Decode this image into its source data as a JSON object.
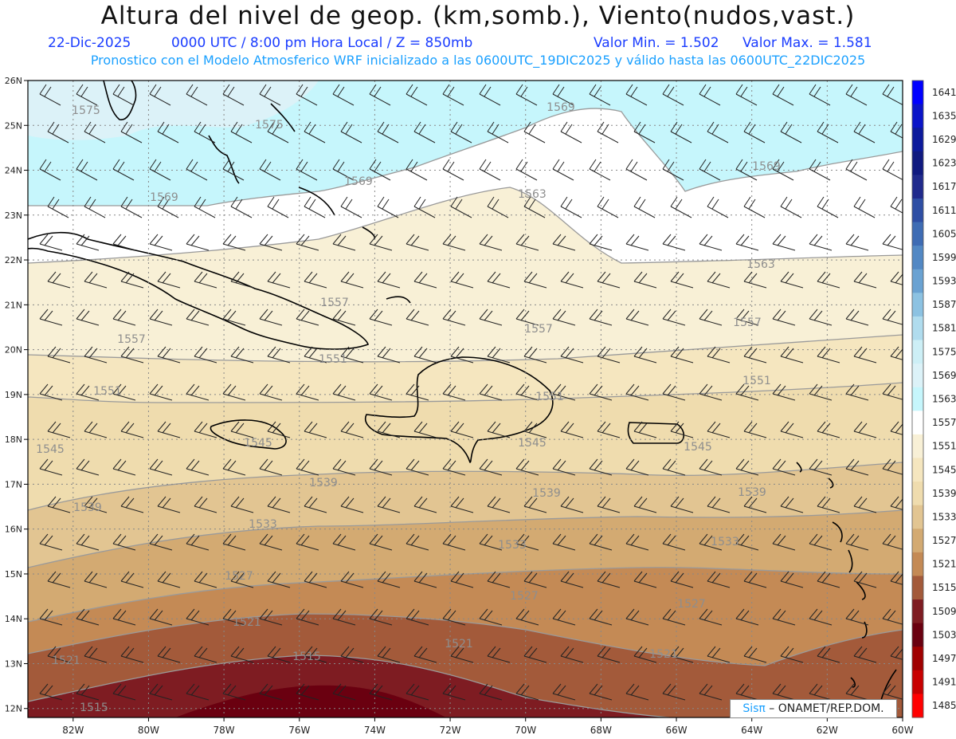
{
  "header": {
    "title": "Altura del nivel de geop. (km,somb.), Viento(nudos,vast.)",
    "date": "22-Dic-2025",
    "time": "0000 UTC / 8:00 pm Hora Local / Z = 850mb",
    "valmin": "Valor Min. = 1.502",
    "valmax": "Valor Max. = 1.581",
    "model_line": "Pronostico con el Modelo Atmosferico WRF inicializado a las 0600UTC_19DIC2025 y válido hasta las  0600UTC_22DIC2025"
  },
  "axes": {
    "lon_labels": [
      "82W",
      "80W",
      "78W",
      "76W",
      "74W",
      "72W",
      "70W",
      "68W",
      "66W",
      "64W",
      "62W",
      "60W"
    ],
    "lat_labels": [
      "26N",
      "25N",
      "24N",
      "23N",
      "22N",
      "21N",
      "20N",
      "19N",
      "18N",
      "17N",
      "16N",
      "15N",
      "14N",
      "13N",
      "12N"
    ],
    "lon_range": [
      -83.2,
      -60
    ],
    "lat_range": [
      11.8,
      26
    ]
  },
  "colorbar": {
    "levels": [
      "1641",
      "1635",
      "1629",
      "1623",
      "1617",
      "1611",
      "1605",
      "1599",
      "1593",
      "1587",
      "1581",
      "1575",
      "1569",
      "1563",
      "1557",
      "1551",
      "1545",
      "1539",
      "1533",
      "1527",
      "1521",
      "1515",
      "1509",
      "1503",
      "1497",
      "1491",
      "1485"
    ],
    "colors": [
      "#0000ff",
      "#0a14c8",
      "#0c1a9c",
      "#101a80",
      "#202a8c",
      "#2e4ea4",
      "#3e6cb4",
      "#5288c4",
      "#6aa2d2",
      "#8cc2e2",
      "#b0dcee",
      "#cdeff6",
      "#dcf2f8",
      "#c6f6fc",
      "#ffffff",
      "#f8f0d6",
      "#f5e6bf",
      "#efdcae",
      "#e2c592",
      "#d3aa72",
      "#c48a55",
      "#a35a3a",
      "#7e1c22",
      "#6a0010",
      "#a00000",
      "#c80000",
      "#ff0000"
    ]
  },
  "contour_labels": [
    {
      "text": "1575"
    },
    {
      "text": "1575"
    },
    {
      "text": "1569"
    },
    {
      "text": "1569"
    },
    {
      "text": "1569"
    },
    {
      "text": "1569"
    },
    {
      "text": "1563"
    },
    {
      "text": "1563"
    },
    {
      "text": "1557"
    },
    {
      "text": "1557"
    },
    {
      "text": "1557"
    },
    {
      "text": "1557"
    },
    {
      "text": "1551"
    },
    {
      "text": "1551"
    },
    {
      "text": "1551"
    },
    {
      "text": "1551"
    },
    {
      "text": "1545"
    },
    {
      "text": "1545"
    },
    {
      "text": "1545"
    },
    {
      "text": "1545"
    },
    {
      "text": "1539"
    },
    {
      "text": "1539"
    },
    {
      "text": "1539"
    },
    {
      "text": "1539"
    },
    {
      "text": "1533"
    },
    {
      "text": "1533"
    },
    {
      "text": "1533"
    },
    {
      "text": "1527"
    },
    {
      "text": "1527"
    },
    {
      "text": "1527"
    },
    {
      "text": "1521"
    },
    {
      "text": "1521"
    },
    {
      "text": "1521"
    },
    {
      "text": "1521"
    },
    {
      "text": "1515"
    },
    {
      "text": "1515"
    }
  ],
  "credit": {
    "sis": "Sisπ",
    "rest": " – ONAMET/REP.DOM."
  }
}
